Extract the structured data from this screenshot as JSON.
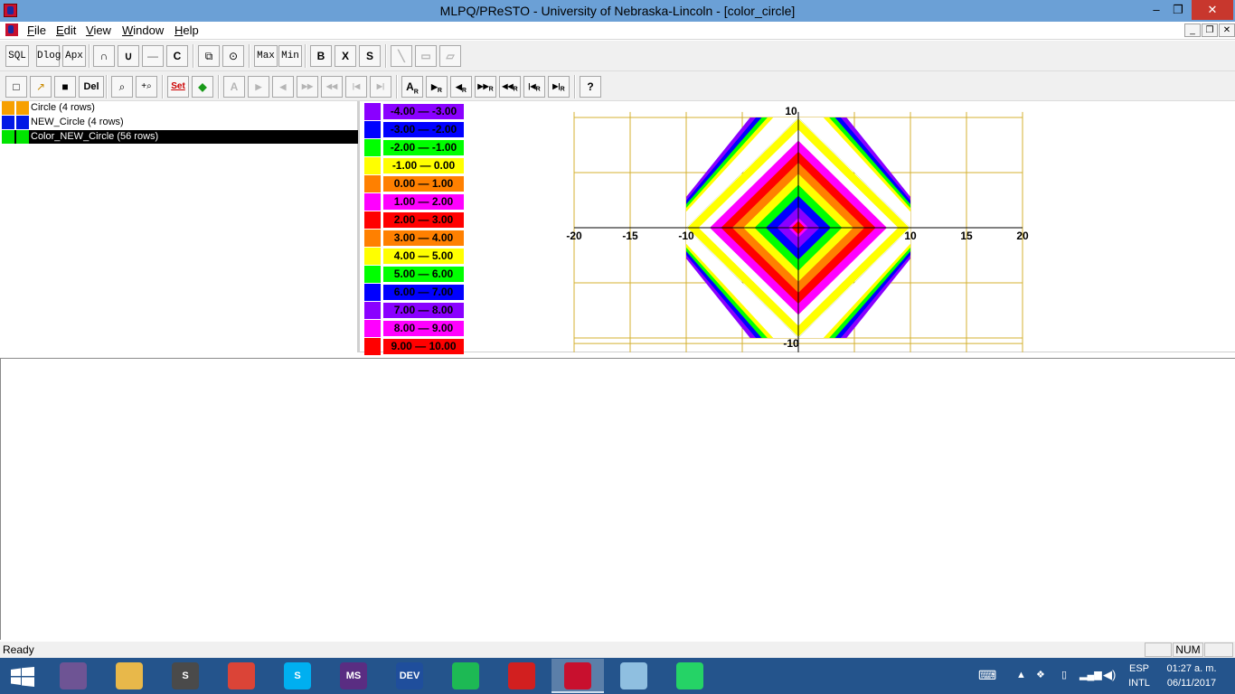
{
  "window": {
    "title": "MLPQ/PReSTO - University of Nebraska-Lincoln - [color_circle]"
  },
  "titlebar_buttons": {
    "minimize": "–",
    "maximize": "❐",
    "close": "✕"
  },
  "menu": {
    "items": [
      "File",
      "Edit",
      "View",
      "Window",
      "Help"
    ],
    "mdi": [
      "_",
      "❐",
      "✕"
    ]
  },
  "toolbar1": [
    "SQL",
    "Dlog",
    "Apx",
    "∩",
    "∪",
    "—",
    "C",
    "⧉",
    "⊙",
    "Max",
    "Min",
    "B",
    "X",
    "S",
    "╲",
    "▭",
    "▱"
  ],
  "toolbar2": [
    "□",
    "↗",
    "■",
    "Del",
    "⌕",
    "+⌕",
    "Set",
    "◆",
    "A",
    "▶",
    "◀",
    "▶▶",
    "◀◀",
    "|◀",
    "▶|",
    "A",
    "▶",
    "◀",
    "▶▶",
    "◀◀",
    "|◀",
    "▶|",
    "?"
  ],
  "toolbar2_subscript": "R",
  "relations": [
    {
      "name": "Circle (4 rows)",
      "color": "#f7a000",
      "selected": false
    },
    {
      "name": "NEW_Circle (4 rows)",
      "color": "#0018e6",
      "selected": false
    },
    {
      "name": "Color_NEW_Circle (56 rows)",
      "color": "#00e500",
      "selected": true
    }
  ],
  "legend": [
    {
      "label": "-4.00 — -3.00",
      "color": "#8a00ff"
    },
    {
      "label": "-3.00 — -2.00",
      "color": "#0000ff"
    },
    {
      "label": "-2.00 — -1.00",
      "color": "#00ff00"
    },
    {
      "label": "-1.00 —  0.00",
      "color": "#ffff00"
    },
    {
      "label": "0.00 —  1.00",
      "color": "#ff8000"
    },
    {
      "label": "1.00 —  2.00",
      "color": "#ff00ff"
    },
    {
      "label": "2.00 —  3.00",
      "color": "#ff0000"
    },
    {
      "label": "3.00 —  4.00",
      "color": "#ff8000"
    },
    {
      "label": "4.00 —  5.00",
      "color": "#ffff00"
    },
    {
      "label": "5.00 —  6.00",
      "color": "#00ff00"
    },
    {
      "label": "6.00 —  7.00",
      "color": "#0000ff"
    },
    {
      "label": "7.00 —  8.00",
      "color": "#8a00ff"
    },
    {
      "label": "8.00 —  9.00",
      "color": "#ff00ff"
    },
    {
      "label": "9.00 — 10.00",
      "color": "#ff0000"
    }
  ],
  "chart_data": {
    "type": "area",
    "xlim": [
      -20,
      20
    ],
    "ylim": [
      -10,
      10
    ],
    "x_ticks": [
      "-20",
      "-15",
      "-10",
      "10",
      "15",
      "20"
    ],
    "y_ticks": [
      "10",
      "-10"
    ],
    "grid": true,
    "grid_color": "#d4b030",
    "series": [
      {
        "values": [
          10,
          9,
          8,
          7,
          6,
          5,
          4,
          3,
          2,
          1
        ],
        "colors": [
          "#8a00ff",
          "#0000ff",
          "#00ff00",
          "#ffff00",
          "#ffffff",
          "#ff00ff",
          "#ff0000",
          "#ff8000",
          "#ffff00",
          "#00ff00"
        ]
      }
    ],
    "diamond_bands": [
      9.5,
      8.5,
      7.5,
      6.5,
      5.5,
      4.5,
      3.5,
      2.5,
      1.5,
      0.5
    ],
    "diamond_colors": [
      "#ffff00",
      "#ffffff",
      "#ff00ff",
      "#ff0000",
      "#ff8000",
      "#ffff00",
      "#00ff00",
      "#0000ff",
      "#8a00ff",
      "#ff00ff"
    ],
    "center_color": "#ff0000",
    "corner_colors": [
      "#8a00ff",
      "#0000ff",
      "#00ff00",
      "#ffff00"
    ]
  },
  "status": {
    "message": "Ready",
    "num": "NUM"
  },
  "taskbar": {
    "apps": [
      {
        "name": "github",
        "color": "#6e5494",
        "label": ""
      },
      {
        "name": "file-explorer",
        "color": "#e8b84a",
        "label": ""
      },
      {
        "name": "sublime",
        "color": "#4a4a4a",
        "label": "S"
      },
      {
        "name": "chrome",
        "color": "#db4437",
        "label": ""
      },
      {
        "name": "skype",
        "color": "#00aff0",
        "label": "S"
      },
      {
        "name": "ms-project",
        "color": "#5a2d82",
        "label": "MS"
      },
      {
        "name": "dev-cpp",
        "color": "#1f4e9c",
        "label": "DEV"
      },
      {
        "name": "spotify",
        "color": "#1db954",
        "label": ""
      },
      {
        "name": "acrobat",
        "color": "#d21f1f",
        "label": ""
      },
      {
        "name": "mlpq",
        "color": "#c8102e",
        "label": ""
      },
      {
        "name": "paint",
        "color": "#8fbfe0",
        "label": ""
      },
      {
        "name": "whatsapp",
        "color": "#25d366",
        "label": ""
      }
    ],
    "lang": "ESP",
    "layout": "INTL",
    "time": "01:27 a. m.",
    "date": "06/11/2017"
  }
}
